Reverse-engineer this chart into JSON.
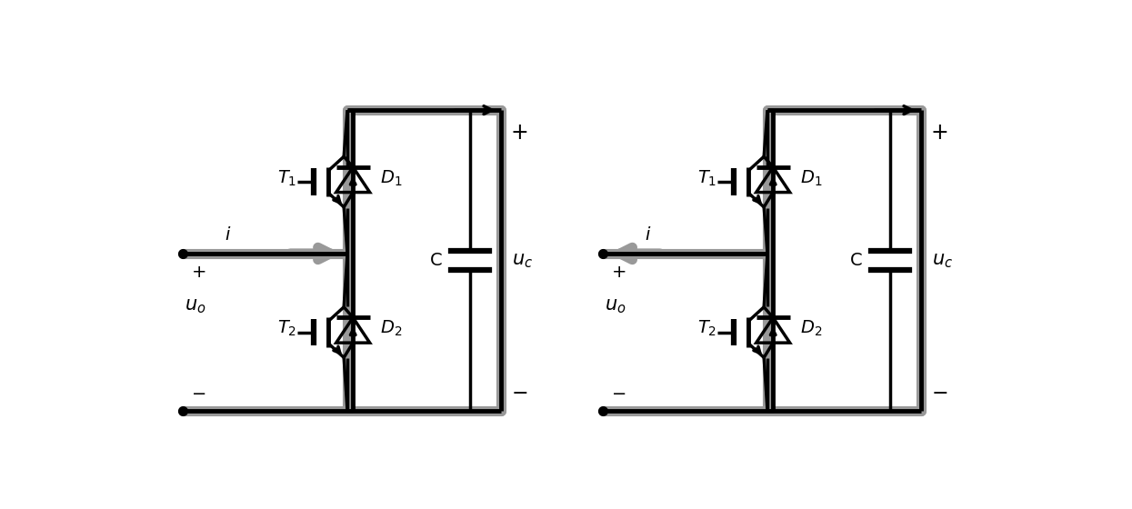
{
  "fig_width": 12.45,
  "fig_height": 5.6,
  "dpi": 100,
  "black": "#000000",
  "gray": "#999999",
  "lw_main": 2.5,
  "lw_thick": 3.5,
  "lw_gray": 8.0,
  "circuits": [
    {
      "ox": 0.55,
      "oy": 2.85,
      "current_dir": "right"
    },
    {
      "ox": 6.55,
      "oy": 2.85,
      "current_dir": "left"
    }
  ]
}
